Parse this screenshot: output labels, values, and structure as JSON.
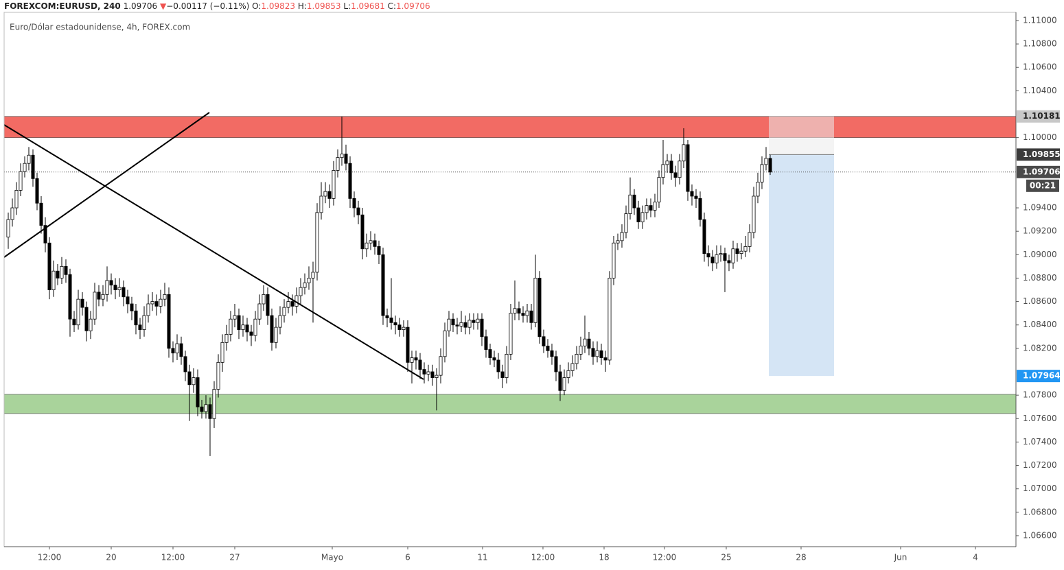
{
  "header": {
    "symbol": "FOREXCOM:EURUSD, 240",
    "last": 1.09706,
    "arrow": "▼",
    "change": "−0.00117 (−0.11%)",
    "o_label": "O:",
    "o": 1.09823,
    "h_label": "H:",
    "h": 1.09853,
    "l_label": "L:",
    "l": 1.09681,
    "c_label": "C:",
    "c": 1.09706
  },
  "chart_data": {
    "type": "candlestick",
    "title": "Euro/Dólar estadounidense, 4h, FOREX.com",
    "up_color": "#ffffff",
    "down_color": "#000000",
    "grid": false,
    "xlim": [
      -1,
      244.67
    ],
    "ylim": [
      1.06506,
      1.1107
    ],
    "xticks": [
      {
        "value": 10,
        "label": "12:00"
      },
      {
        "value": 25,
        "label": "20"
      },
      {
        "value": 40,
        "label": "12:00"
      },
      {
        "value": 55,
        "label": "27"
      },
      {
        "value": 78.67,
        "label": "Mayo"
      },
      {
        "value": 97,
        "label": "6"
      },
      {
        "value": 115.17,
        "label": "11"
      },
      {
        "value": 129.83,
        "label": "12:00"
      },
      {
        "value": 144.67,
        "label": "18"
      },
      {
        "value": 159.33,
        "label": "12:00"
      },
      {
        "value": 174.33,
        "label": "25"
      },
      {
        "value": 192.5,
        "label": "28"
      },
      {
        "value": 216.67,
        "label": "Jun"
      },
      {
        "value": 234.83,
        "label": "4"
      }
    ],
    "yticks": [
      {
        "value": 1.11,
        "label": "1.11000"
      },
      {
        "value": 1.108,
        "label": "1.10800"
      },
      {
        "value": 1.106,
        "label": "1.10600"
      },
      {
        "value": 1.104,
        "label": "1.10400"
      },
      {
        "value": 1.1,
        "label": "1.10000"
      },
      {
        "value": 1.094,
        "label": "1.09400"
      },
      {
        "value": 1.092,
        "label": "1.09200"
      },
      {
        "value": 1.09,
        "label": "1.09000"
      },
      {
        "value": 1.088,
        "label": "1.08800"
      },
      {
        "value": 1.086,
        "label": "1.08600"
      },
      {
        "value": 1.084,
        "label": "1.08400"
      },
      {
        "value": 1.082,
        "label": "1.08200"
      },
      {
        "value": 1.078,
        "label": "1.07800"
      },
      {
        "value": 1.076,
        "label": "1.07600"
      },
      {
        "value": 1.074,
        "label": "1.07400"
      },
      {
        "value": 1.072,
        "label": "1.07200"
      },
      {
        "value": 1.07,
        "label": "1.07000"
      },
      {
        "value": 1.068,
        "label": "1.06800"
      },
      {
        "value": 1.066,
        "label": "1.06600"
      }
    ],
    "zones": [
      {
        "from": 1.1,
        "to": 1.10181,
        "color": "#f26b64"
      },
      {
        "from": 1.07643,
        "to": 1.07807,
        "color": "#a9d39b"
      }
    ],
    "position": {
      "stop": 1.10181,
      "entry": 1.09855,
      "target": 1.07964
    },
    "price_labels": [
      {
        "value": 1.10181,
        "color": "#c8c8c8",
        "text_color": "#222222"
      },
      {
        "value": 1.09855,
        "color": "#3b3b3b",
        "text_color": "#ffffff"
      },
      {
        "value": 1.09706,
        "color": "#4a4a4a",
        "text_color": "#ffffff"
      },
      {
        "value": 1.07964,
        "color": "#2196f3",
        "text_color": "#ffffff"
      }
    ],
    "countdown": "00:21",
    "candles": [
      [
        1.0915,
        1.0936,
        1.0905,
        1.093
      ],
      [
        1.093,
        1.0948,
        1.0924,
        1.094
      ],
      [
        1.094,
        1.0962,
        1.0934,
        1.0955
      ],
      [
        1.0955,
        1.0978,
        1.095,
        1.0971
      ],
      [
        1.0971,
        1.0984,
        1.0966,
        1.0978
      ],
      [
        1.0978,
        1.0992,
        1.0972,
        1.0985
      ],
      [
        1.0985,
        1.099,
        1.0958,
        1.0965
      ],
      [
        1.0965,
        1.097,
        1.0938,
        1.0944
      ],
      [
        1.0944,
        1.095,
        1.0918,
        1.0925
      ],
      [
        1.0925,
        1.0932,
        1.0902,
        1.091
      ],
      [
        1.091,
        1.0915,
        1.0862,
        1.087
      ],
      [
        1.087,
        1.0895,
        1.0864,
        1.0886
      ],
      [
        1.0886,
        1.0892,
        1.0874,
        1.088
      ],
      [
        1.088,
        1.0898,
        1.0875,
        1.089
      ],
      [
        1.089,
        1.0896,
        1.0876,
        1.0883
      ],
      [
        1.0883,
        1.0888,
        1.083,
        1.0845
      ],
      [
        1.0845,
        1.0852,
        1.0834,
        1.084
      ],
      [
        1.084,
        1.087,
        1.0836,
        1.0862
      ],
      [
        1.0862,
        1.0868,
        1.0848,
        1.0855
      ],
      [
        1.0855,
        1.086,
        1.0826,
        1.0835
      ],
      [
        1.0835,
        1.0852,
        1.0828,
        1.0845
      ],
      [
        1.0845,
        1.0876,
        1.084,
        1.0868
      ],
      [
        1.0868,
        1.0874,
        1.0856,
        1.0862
      ],
      [
        1.0862,
        1.0874,
        1.0856,
        1.0866
      ],
      [
        1.0866,
        1.089,
        1.086,
        1.0878
      ],
      [
        1.0878,
        1.0884,
        1.0866,
        1.0874
      ],
      [
        1.0874,
        1.088,
        1.0862,
        1.087
      ],
      [
        1.087,
        1.088,
        1.0864,
        1.0872
      ],
      [
        1.0872,
        1.0878,
        1.0856,
        1.0864
      ],
      [
        1.0864,
        1.087,
        1.085,
        1.0858
      ],
      [
        1.0858,
        1.0864,
        1.0844,
        1.0852
      ],
      [
        1.0852,
        1.0858,
        1.0832,
        1.084
      ],
      [
        1.084,
        1.0846,
        1.0828,
        1.0836
      ],
      [
        1.0836,
        1.0856,
        1.083,
        1.0848
      ],
      [
        1.0848,
        1.0866,
        1.0842,
        1.0858
      ],
      [
        1.0858,
        1.0868,
        1.0852,
        1.086
      ],
      [
        1.086,
        1.0866,
        1.0848,
        1.0856
      ],
      [
        1.0856,
        1.087,
        1.085,
        1.0862
      ],
      [
        1.0862,
        1.0876,
        1.0856,
        1.0866
      ],
      [
        1.0866,
        1.0872,
        1.0812,
        1.082
      ],
      [
        1.082,
        1.0826,
        1.0808,
        1.0816
      ],
      [
        1.0816,
        1.0832,
        1.081,
        1.0824
      ],
      [
        1.0824,
        1.083,
        1.0806,
        1.0813
      ],
      [
        1.0813,
        1.0818,
        1.0792,
        1.08
      ],
      [
        1.08,
        1.0806,
        1.0758,
        1.0789
      ],
      [
        1.0789,
        1.0803,
        1.0782,
        1.0795
      ],
      [
        1.0795,
        1.0802,
        1.0762,
        1.077
      ],
      [
        1.077,
        1.0776,
        1.076,
        1.0766
      ],
      [
        1.0766,
        1.078,
        1.076,
        1.0772
      ],
      [
        1.0772,
        1.0778,
        1.0728,
        1.076
      ],
      [
        1.076,
        1.0792,
        1.0752,
        1.0785
      ],
      [
        1.0785,
        1.0815,
        1.0778,
        1.0808
      ],
      [
        1.0808,
        1.0832,
        1.08,
        1.0825
      ],
      [
        1.0825,
        1.084,
        1.0818,
        1.0832
      ],
      [
        1.0832,
        1.0852,
        1.0826,
        1.0845
      ],
      [
        1.0845,
        1.0858,
        1.0838,
        1.0848
      ],
      [
        1.0848,
        1.0854,
        1.0828,
        1.0836
      ],
      [
        1.0836,
        1.0848,
        1.083,
        1.084
      ],
      [
        1.084,
        1.0846,
        1.0826,
        1.0834
      ],
      [
        1.0834,
        1.084,
        1.0822,
        1.0831
      ],
      [
        1.0831,
        1.0852,
        1.0826,
        1.0845
      ],
      [
        1.0845,
        1.0866,
        1.084,
        1.0858
      ],
      [
        1.0858,
        1.0874,
        1.0852,
        1.0866
      ],
      [
        1.0866,
        1.0872,
        1.084,
        1.0848
      ],
      [
        1.0848,
        1.0854,
        1.0818,
        1.0825
      ],
      [
        1.0825,
        1.0846,
        1.082,
        1.0838
      ],
      [
        1.0838,
        1.0856,
        1.0832,
        1.0848
      ],
      [
        1.0848,
        1.0862,
        1.0842,
        1.0855
      ],
      [
        1.0855,
        1.0868,
        1.085,
        1.086
      ],
      [
        1.086,
        1.0866,
        1.0848,
        1.0856
      ],
      [
        1.0856,
        1.0872,
        1.085,
        1.0865
      ],
      [
        1.0865,
        1.088,
        1.0858,
        1.0872
      ],
      [
        1.0872,
        1.0884,
        1.0866,
        1.0876
      ],
      [
        1.0876,
        1.089,
        1.087,
        1.088
      ],
      [
        1.088,
        1.0894,
        1.0842,
        1.0885
      ],
      [
        1.0885,
        1.0944,
        1.0878,
        1.0936
      ],
      [
        1.0936,
        1.0962,
        1.093,
        1.095
      ],
      [
        1.095,
        1.0962,
        1.0944,
        1.0954
      ],
      [
        1.0954,
        1.096,
        1.094,
        1.0948
      ],
      [
        1.0948,
        1.098,
        1.0942,
        1.0972
      ],
      [
        1.0972,
        1.099,
        1.0966,
        1.0983
      ],
      [
        1.0983,
        1.1018,
        1.0976,
        1.0986
      ],
      [
        1.0986,
        1.0994,
        1.0972,
        1.0978
      ],
      [
        1.0978,
        1.0984,
        1.094,
        1.0948
      ],
      [
        1.0948,
        1.0954,
        1.0932,
        1.094
      ],
      [
        1.094,
        1.0946,
        1.0926,
        1.0934
      ],
      [
        1.0934,
        1.094,
        1.0896,
        1.0905
      ],
      [
        1.0905,
        1.0918,
        1.0898,
        1.091
      ],
      [
        1.091,
        1.092,
        1.0904,
        1.0912
      ],
      [
        1.0912,
        1.0918,
        1.09,
        1.0907
      ],
      [
        1.0907,
        1.0912,
        1.0892,
        1.09
      ],
      [
        1.09,
        1.0906,
        1.084,
        1.0848
      ],
      [
        1.0848,
        1.0854,
        1.0838,
        1.0846
      ],
      [
        1.0846,
        1.088,
        1.0836,
        1.0842
      ],
      [
        1.0842,
        1.0848,
        1.0832,
        1.084
      ],
      [
        1.084,
        1.0846,
        1.083,
        1.0836
      ],
      [
        1.0836,
        1.0844,
        1.083,
        1.0838
      ],
      [
        1.0838,
        1.0844,
        1.08,
        1.0808
      ],
      [
        1.0808,
        1.0818,
        1.079,
        1.0812
      ],
      [
        1.0812,
        1.0818,
        1.0802,
        1.081
      ],
      [
        1.081,
        1.0816,
        1.0794,
        1.0802
      ],
      [
        1.0802,
        1.0808,
        1.079,
        1.0798
      ],
      [
        1.0798,
        1.0806,
        1.0792,
        1.08
      ],
      [
        1.08,
        1.0806,
        1.0788,
        1.0795
      ],
      [
        1.0795,
        1.0803,
        1.0767,
        1.0797
      ],
      [
        1.0797,
        1.082,
        1.079,
        1.0813
      ],
      [
        1.0813,
        1.0842,
        1.0808,
        1.0835
      ],
      [
        1.0835,
        1.0852,
        1.083,
        1.0845
      ],
      [
        1.0845,
        1.085,
        1.0834,
        1.084
      ],
      [
        1.084,
        1.0846,
        1.0832,
        1.0839
      ],
      [
        1.0839,
        1.0852,
        1.0834,
        1.0842
      ],
      [
        1.0842,
        1.0848,
        1.0832,
        1.0838
      ],
      [
        1.0838,
        1.085,
        1.0832,
        1.0844
      ],
      [
        1.0844,
        1.085,
        1.0836,
        1.0842
      ],
      [
        1.0842,
        1.085,
        1.0836,
        1.0845
      ],
      [
        1.0845,
        1.085,
        1.0822,
        1.083
      ],
      [
        1.083,
        1.0836,
        1.0812,
        1.0819
      ],
      [
        1.0819,
        1.0824,
        1.0806,
        1.0812
      ],
      [
        1.0812,
        1.0818,
        1.0804,
        1.081
      ],
      [
        1.081,
        1.0816,
        1.0794,
        1.08
      ],
      [
        1.08,
        1.0806,
        1.0786,
        1.0795
      ],
      [
        1.0795,
        1.0822,
        1.079,
        1.0815
      ],
      [
        1.0815,
        1.0858,
        1.081,
        1.085
      ],
      [
        1.085,
        1.0878,
        1.0844,
        1.0854
      ],
      [
        1.0854,
        1.086,
        1.0844,
        1.085
      ],
      [
        1.085,
        1.0856,
        1.0842,
        1.0848
      ],
      [
        1.0848,
        1.0858,
        1.0842,
        1.0852
      ],
      [
        1.0852,
        1.0858,
        1.0836,
        1.0842
      ],
      [
        1.0842,
        1.09,
        1.0838,
        1.088
      ],
      [
        1.088,
        1.0886,
        1.0824,
        1.083
      ],
      [
        1.083,
        1.0836,
        1.0816,
        1.0822
      ],
      [
        1.0822,
        1.0828,
        1.0812,
        1.0818
      ],
      [
        1.0818,
        1.0824,
        1.0806,
        1.0813
      ],
      [
        1.0813,
        1.0818,
        1.0792,
        1.08
      ],
      [
        1.08,
        1.0806,
        1.0775,
        1.0784
      ],
      [
        1.0784,
        1.0802,
        1.078,
        1.0795
      ],
      [
        1.0795,
        1.0808,
        1.079,
        1.0801
      ],
      [
        1.0801,
        1.0814,
        1.0796,
        1.0807
      ],
      [
        1.0807,
        1.0822,
        1.0802,
        1.0815
      ],
      [
        1.0815,
        1.083,
        1.081,
        1.0822
      ],
      [
        1.0822,
        1.0848,
        1.0816,
        1.0828
      ],
      [
        1.0828,
        1.0834,
        1.0814,
        1.082
      ],
      [
        1.082,
        1.0826,
        1.0806,
        1.0813
      ],
      [
        1.0813,
        1.0826,
        1.0808,
        1.0818
      ],
      [
        1.0818,
        1.0824,
        1.0806,
        1.0812
      ],
      [
        1.0812,
        1.0818,
        1.08,
        1.081
      ],
      [
        1.081,
        1.0886,
        1.0806,
        1.088
      ],
      [
        1.088,
        1.0916,
        1.0874,
        1.091
      ],
      [
        1.091,
        1.0918,
        1.0904,
        1.0912
      ],
      [
        1.0912,
        1.0926,
        1.0906,
        1.0919
      ],
      [
        1.0919,
        1.0942,
        1.0914,
        1.0935
      ],
      [
        1.0935,
        1.0966,
        1.093,
        1.0951
      ],
      [
        1.0951,
        1.0956,
        1.0934,
        1.094
      ],
      [
        1.094,
        1.0946,
        1.0922,
        1.0928
      ],
      [
        1.0928,
        1.0942,
        1.0922,
        1.0936
      ],
      [
        1.0936,
        1.0948,
        1.093,
        1.0942
      ],
      [
        1.0942,
        1.0948,
        1.0932,
        1.0938
      ],
      [
        1.0938,
        1.0952,
        1.0932,
        1.0945
      ],
      [
        1.0945,
        1.0972,
        1.094,
        1.0966
      ],
      [
        1.0966,
        1.0998,
        1.096,
        1.0977
      ],
      [
        1.0977,
        1.0986,
        1.097,
        1.098
      ],
      [
        1.098,
        1.0986,
        1.0964,
        1.097
      ],
      [
        1.097,
        1.0976,
        1.0958,
        1.0966
      ],
      [
        1.0966,
        1.0986,
        1.096,
        1.098
      ],
      [
        1.098,
        1.1008,
        1.0974,
        1.0994
      ],
      [
        1.0994,
        1.0998,
        1.0946,
        1.0954
      ],
      [
        1.0954,
        1.096,
        1.0942,
        1.095
      ],
      [
        1.095,
        1.0956,
        1.094,
        1.0948
      ],
      [
        1.0948,
        1.0954,
        1.0924,
        1.093
      ],
      [
        1.093,
        1.0936,
        1.0894,
        1.0901
      ],
      [
        1.0901,
        1.0908,
        1.089,
        1.0898
      ],
      [
        1.0898,
        1.0904,
        1.0886,
        1.0893
      ],
      [
        1.0893,
        1.0908,
        1.0888,
        1.09
      ],
      [
        1.09,
        1.0908,
        1.0894,
        1.0901
      ],
      [
        1.0901,
        1.0906,
        1.0868,
        1.0895
      ],
      [
        1.0895,
        1.09,
        1.0886,
        1.0893
      ],
      [
        1.0893,
        1.0912,
        1.0888,
        1.0905
      ],
      [
        1.0905,
        1.091,
        1.0894,
        1.0901
      ],
      [
        1.0901,
        1.091,
        1.0896,
        1.0903
      ],
      [
        1.0903,
        1.0916,
        1.0898,
        1.0907
      ],
      [
        1.0907,
        1.0926,
        1.0902,
        1.0919
      ],
      [
        1.0919,
        1.0958,
        1.0914,
        1.095
      ],
      [
        1.095,
        1.097,
        1.0944,
        1.0962
      ],
      [
        1.0962,
        1.0984,
        1.0956,
        1.0977
      ],
      [
        1.0977,
        1.0992,
        1.0972,
        1.09823
      ],
      [
        1.09823,
        1.09853,
        1.09681,
        1.09706
      ]
    ]
  }
}
